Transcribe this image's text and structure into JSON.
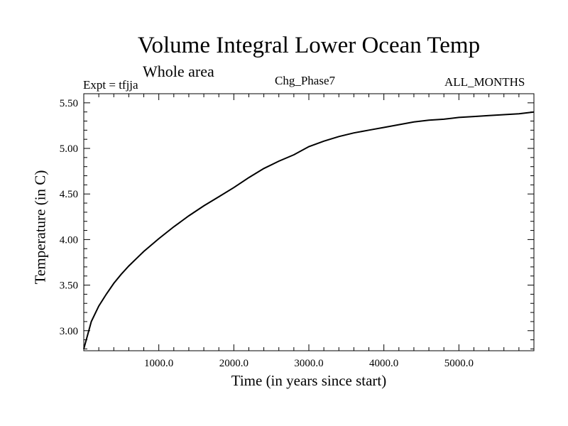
{
  "chart_data": {
    "type": "line",
    "title": "Volume Integral Lower Ocean Temp",
    "subtitle": "Whole area",
    "annotations": {
      "left": "Expt = tfjja",
      "center": "Chg_Phase7",
      "right": "ALL_MONTHS"
    },
    "xlabel": "Time (in years since start)",
    "ylabel": "Temperature (in C)",
    "xlim": [
      0,
      6000
    ],
    "ylim": [
      2.78,
      5.6
    ],
    "x_ticks": [
      1000,
      2000,
      3000,
      4000,
      5000
    ],
    "x_tick_labels": [
      "1000.0",
      "2000.0",
      "3000.0",
      "4000.0",
      "5000.0"
    ],
    "y_ticks": [
      3.0,
      3.5,
      4.0,
      4.5,
      5.0,
      5.5
    ],
    "y_tick_labels": [
      "3.00",
      "3.50",
      "4.00",
      "4.50",
      "5.00",
      "5.50"
    ],
    "grid": false,
    "series": [
      {
        "color": "#000000",
        "x": [
          0,
          100,
          200,
          300,
          400,
          500,
          600,
          700,
          800,
          900,
          1000,
          1200,
          1400,
          1600,
          1800,
          2000,
          2200,
          2400,
          2600,
          2800,
          3000,
          3200,
          3400,
          3600,
          3800,
          4000,
          4200,
          4400,
          4600,
          4800,
          5000,
          5200,
          5400,
          5600,
          5800,
          6000
        ],
        "y": [
          2.8,
          3.1,
          3.27,
          3.4,
          3.52,
          3.62,
          3.71,
          3.79,
          3.87,
          3.94,
          4.01,
          4.14,
          4.26,
          4.37,
          4.47,
          4.57,
          4.68,
          4.78,
          4.86,
          4.93,
          5.02,
          5.08,
          5.13,
          5.17,
          5.2,
          5.23,
          5.26,
          5.29,
          5.31,
          5.32,
          5.34,
          5.35,
          5.36,
          5.37,
          5.38,
          5.4
        ]
      }
    ]
  }
}
